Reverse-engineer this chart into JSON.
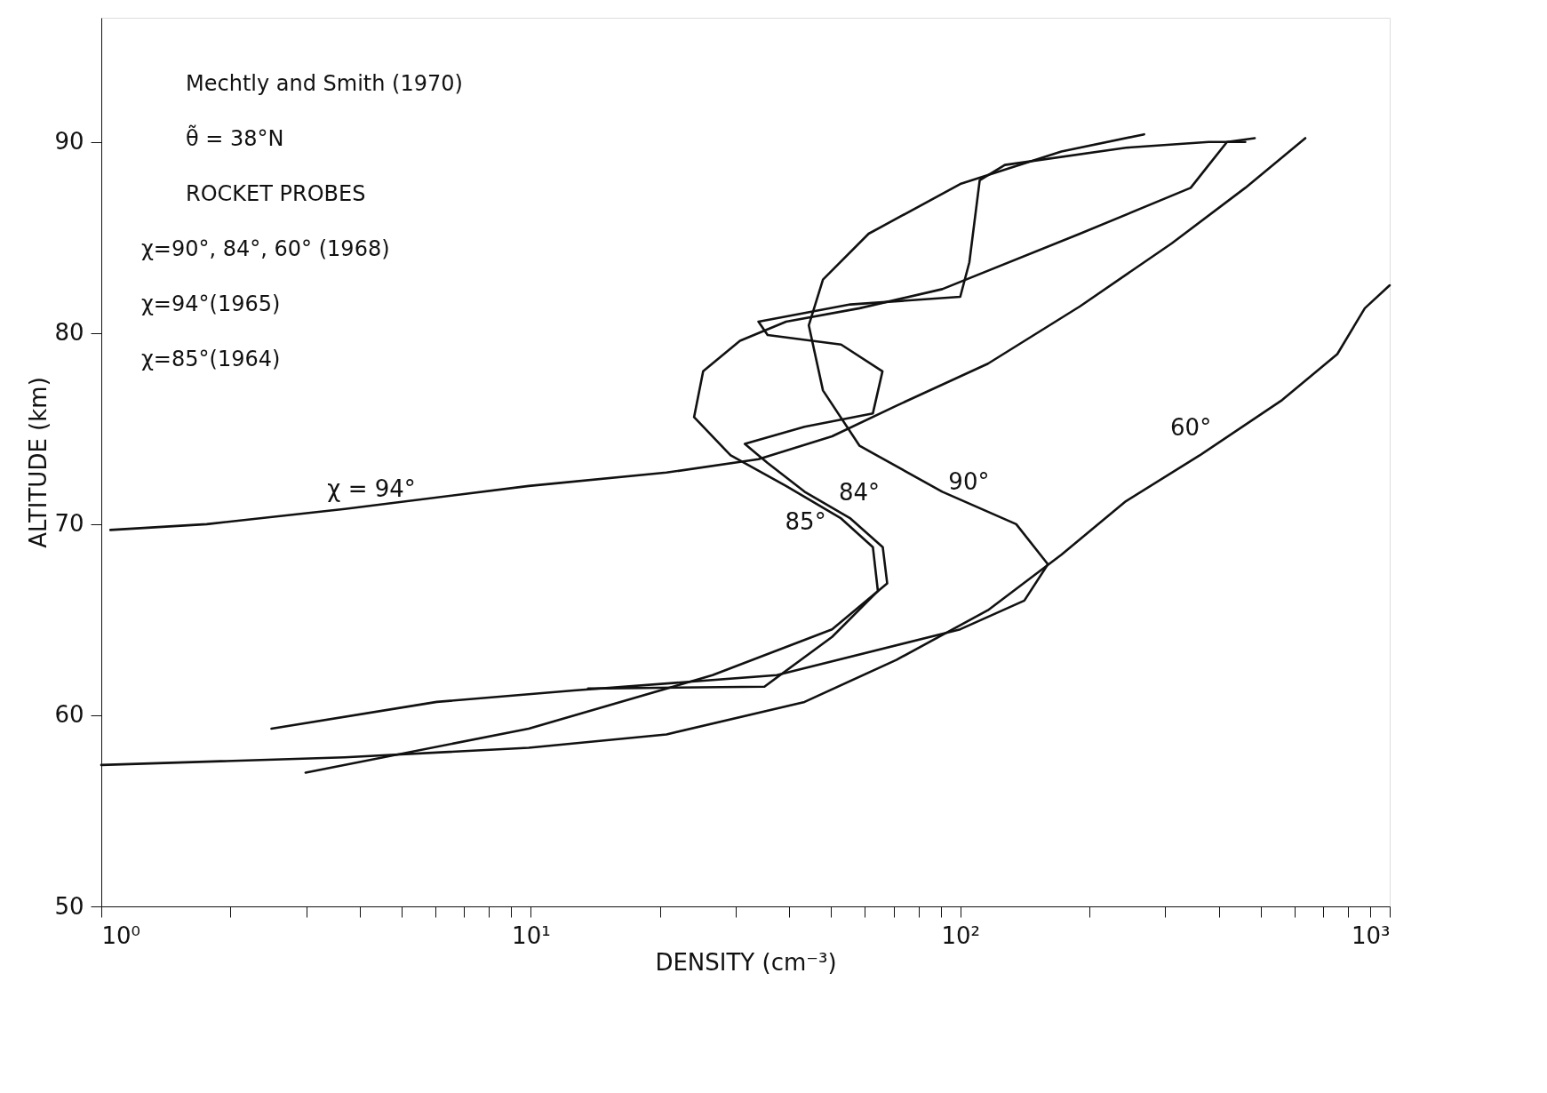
{
  "chart_data": {
    "type": "line",
    "xlabel": "DENSITY (cm⁻³)",
    "ylabel": "ALTITUDE (km)",
    "log": "x",
    "grid": false,
    "legend": false,
    "marker": "none",
    "line_style": "solid",
    "xlim": [
      1,
      1000
    ],
    "ylim": [
      50,
      96.5
    ],
    "xticks": [
      {
        "value": 1,
        "label": "10⁰"
      },
      {
        "value": 2,
        "label": null
      },
      {
        "value": 3,
        "label": null
      },
      {
        "value": 4,
        "label": null
      },
      {
        "value": 5,
        "label": null
      },
      {
        "value": 6,
        "label": null
      },
      {
        "value": 7,
        "label": null
      },
      {
        "value": 8,
        "label": null
      },
      {
        "value": 9,
        "label": null
      },
      {
        "value": 10,
        "label": "10¹"
      },
      {
        "value": 20,
        "label": null
      },
      {
        "value": 30,
        "label": null
      },
      {
        "value": 40,
        "label": null
      },
      {
        "value": 50,
        "label": null
      },
      {
        "value": 60,
        "label": null
      },
      {
        "value": 70,
        "label": null
      },
      {
        "value": 80,
        "label": null
      },
      {
        "value": 90,
        "label": null
      },
      {
        "value": 100,
        "label": "10²"
      },
      {
        "value": 200,
        "label": null
      },
      {
        "value": 300,
        "label": null
      },
      {
        "value": 400,
        "label": null
      },
      {
        "value": 500,
        "label": null
      },
      {
        "value": 600,
        "label": null
      },
      {
        "value": 700,
        "label": null
      },
      {
        "value": 800,
        "label": null
      },
      {
        "value": 900,
        "label": null
      },
      {
        "value": 1000,
        "label": "10³"
      }
    ],
    "yticks": [
      50,
      60,
      70,
      80,
      90
    ],
    "series": [
      {
        "name": "χ = 94°",
        "color": "#111111",
        "x": [
          1.05,
          1.76,
          3.69,
          9.89,
          20.7,
          33.9,
          50.3,
          71.0,
          116,
          190,
          311,
          461,
          636
        ],
        "values": [
          69.7,
          70.0,
          70.8,
          72.0,
          72.7,
          73.4,
          74.6,
          76.2,
          78.4,
          81.4,
          84.7,
          87.6,
          90.2
        ]
      },
      {
        "name": "60°",
        "color": "#111111",
        "x": [
          1.0,
          3.69,
          9.89,
          20.7,
          43.4,
          71.0,
          116,
          172,
          243,
          361,
          562,
          755,
          875,
          1000
        ],
        "values": [
          57.4,
          57.8,
          58.3,
          59.0,
          60.7,
          62.9,
          65.5,
          68.4,
          71.2,
          73.6,
          76.5,
          78.9,
          81.3,
          82.5
        ]
      },
      {
        "name": "90°",
        "color": "#111111",
        "x": [
          2.49,
          6.04,
          12.6,
          37.4,
          100,
          141,
          160,
          135,
          90.8,
          58.3,
          47.9,
          44.4,
          47.9,
          61.2,
          100,
          172,
          268
        ],
        "values": [
          59.3,
          60.7,
          61.3,
          62.1,
          64.5,
          66.0,
          67.9,
          70.0,
          71.7,
          74.1,
          77.0,
          80.4,
          82.8,
          85.2,
          87.8,
          89.5,
          90.4
        ]
      },
      {
        "name": "84°",
        "color": "#111111",
        "x": [
          2.99,
          9.89,
          26.5,
          50.3,
          67.6,
          66.0,
          55.5,
          43.4,
          35.6,
          31.5,
          43.4,
          62.6,
          65.9,
          52.8,
          35.6,
          33.9,
          55.5,
          100,
          105,
          111,
          127,
          243,
          379,
          461
        ],
        "values": [
          57.0,
          59.3,
          62.1,
          64.5,
          66.9,
          68.8,
          70.3,
          71.7,
          73.2,
          74.2,
          75.1,
          75.8,
          78.0,
          79.4,
          79.9,
          80.6,
          81.5,
          81.9,
          83.7,
          88.0,
          88.8,
          89.7,
          90.0,
          90.0
        ]
      },
      {
        "name": "85°",
        "color": "#111111",
        "x": [
          13.6,
          35.0,
          50.3,
          64.3,
          62.6,
          52.8,
          39.3,
          29.2,
          24.0,
          25.2,
          30.7,
          39.3,
          58.3,
          90.8,
          190,
          344,
          379,
          418,
          485
        ],
        "values": [
          61.4,
          61.5,
          64.1,
          66.5,
          68.8,
          70.3,
          72.0,
          73.6,
          75.6,
          78.0,
          79.6,
          80.6,
          81.3,
          82.3,
          85.2,
          87.6,
          88.8,
          90.0,
          90.2
        ]
      }
    ],
    "annotations": [
      "Mechtly and Smith (1970)",
      "θ̃ = 38°N",
      "ROCKET PROBES",
      "χ=90°, 84°, 60° (1968)",
      "χ=94°(1965)",
      "χ=85°(1964)"
    ]
  }
}
